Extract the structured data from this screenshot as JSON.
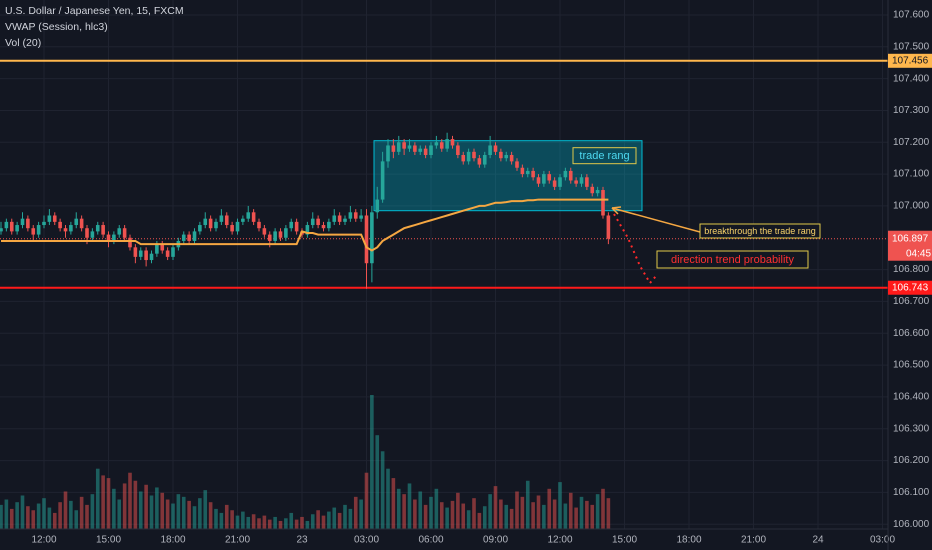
{
  "chart_data": {
    "type": "candlestick",
    "title": "U.S. Dollar / Japanese Yen, 15, FXCM",
    "indicators": [
      "VWAP (Session, hlc3)",
      "Vol (20)"
    ],
    "categories": [
      null,
      null,
      null,
      null,
      null,
      null,
      null,
      null,
      "12:00",
      null,
      null,
      null,
      null,
      null,
      null,
      null,
      null,
      null,
      null,
      null,
      "15:00",
      null,
      null,
      null,
      null,
      null,
      null,
      null,
      null,
      null,
      null,
      null,
      "18:00",
      null,
      null,
      null,
      null,
      null,
      null,
      null,
      null,
      null,
      null,
      null,
      "21:00",
      null,
      null,
      null,
      null,
      null,
      null,
      null,
      null,
      null,
      null,
      null,
      "23",
      null,
      null,
      null,
      null,
      null,
      null,
      null,
      null,
      null,
      null,
      null,
      "03:00",
      null,
      null,
      null,
      null,
      null,
      null,
      null,
      null,
      null,
      null,
      null,
      "06:00",
      null,
      null,
      null,
      null,
      null,
      null,
      null,
      null,
      null,
      null,
      null,
      "09:00",
      null,
      null,
      null,
      null,
      null,
      null,
      null,
      null,
      null,
      null,
      null,
      "12:00",
      null,
      null,
      null,
      null,
      null,
      null,
      null,
      null,
      null
    ],
    "future_labels": [
      "15:00",
      "18:00",
      "21:00",
      "24",
      "03:00"
    ],
    "ohlc": [
      [
        106.92,
        106.95,
        106.91,
        106.93
      ],
      [
        106.93,
        106.96,
        106.92,
        106.95
      ],
      [
        106.95,
        106.96,
        106.91,
        106.92
      ],
      [
        106.92,
        106.95,
        106.91,
        106.94
      ],
      [
        106.94,
        106.98,
        106.93,
        106.96
      ],
      [
        106.96,
        106.97,
        106.92,
        106.93
      ],
      [
        106.93,
        106.94,
        106.89,
        106.91
      ],
      [
        106.91,
        106.95,
        106.9,
        106.94
      ],
      [
        106.94,
        106.97,
        106.93,
        106.95
      ],
      [
        106.95,
        106.99,
        106.94,
        106.97
      ],
      [
        106.97,
        106.98,
        106.94,
        106.95
      ],
      [
        106.95,
        106.96,
        106.92,
        106.93
      ],
      [
        106.93,
        106.94,
        106.9,
        106.92
      ],
      [
        106.92,
        106.95,
        106.91,
        106.94
      ],
      [
        106.94,
        106.98,
        106.93,
        106.96
      ],
      [
        106.96,
        106.97,
        106.92,
        106.93
      ],
      [
        106.93,
        106.94,
        106.88,
        106.9
      ],
      [
        106.9,
        106.93,
        106.89,
        106.92
      ],
      [
        106.92,
        106.95,
        106.91,
        106.94
      ],
      [
        106.94,
        106.95,
        106.9,
        106.91
      ],
      [
        106.91,
        106.92,
        106.87,
        106.89
      ],
      [
        106.89,
        106.92,
        106.88,
        106.91
      ],
      [
        106.91,
        106.94,
        106.9,
        106.93
      ],
      [
        106.93,
        106.94,
        106.89,
        106.9
      ],
      [
        106.9,
        106.91,
        106.86,
        106.87
      ],
      [
        106.87,
        106.88,
        106.82,
        106.84
      ],
      [
        106.84,
        106.87,
        106.83,
        106.86
      ],
      [
        106.86,
        106.87,
        106.81,
        106.83
      ],
      [
        106.83,
        106.86,
        106.82,
        106.85
      ],
      [
        106.85,
        106.89,
        106.84,
        106.88
      ],
      [
        106.88,
        106.89,
        106.85,
        106.86
      ],
      [
        106.86,
        106.87,
        106.83,
        106.84
      ],
      [
        106.84,
        106.88,
        106.83,
        106.87
      ],
      [
        106.87,
        106.9,
        106.86,
        106.89
      ],
      [
        106.89,
        106.92,
        106.88,
        106.91
      ],
      [
        106.91,
        106.92,
        106.88,
        106.89
      ],
      [
        106.89,
        106.93,
        106.88,
        106.92
      ],
      [
        106.92,
        106.95,
        106.91,
        106.94
      ],
      [
        106.94,
        106.98,
        106.93,
        106.96
      ],
      [
        106.96,
        106.97,
        106.92,
        106.93
      ],
      [
        106.93,
        106.96,
        106.92,
        106.95
      ],
      [
        106.95,
        106.99,
        106.94,
        106.97
      ],
      [
        106.97,
        106.98,
        106.93,
        106.94
      ],
      [
        106.94,
        106.95,
        106.91,
        106.92
      ],
      [
        106.92,
        106.96,
        106.91,
        106.95
      ],
      [
        106.95,
        106.97,
        106.94,
        106.96
      ],
      [
        106.96,
        107.0,
        106.95,
        106.98
      ],
      [
        106.98,
        106.99,
        106.94,
        106.95
      ],
      [
        106.95,
        106.96,
        106.92,
        106.93
      ],
      [
        106.93,
        106.94,
        106.9,
        106.91
      ],
      [
        106.91,
        106.92,
        106.87,
        106.89
      ],
      [
        106.89,
        106.93,
        106.88,
        106.92
      ],
      [
        106.92,
        106.93,
        106.89,
        106.9
      ],
      [
        106.9,
        106.94,
        106.89,
        106.93
      ],
      [
        106.93,
        106.96,
        106.92,
        106.95
      ],
      [
        106.95,
        106.96,
        106.91,
        106.92
      ],
      [
        106.92,
        106.93,
        106.9,
        106.91
      ],
      [
        106.91,
        106.95,
        106.9,
        106.94
      ],
      [
        106.94,
        106.98,
        106.93,
        106.96
      ],
      [
        106.96,
        106.97,
        106.93,
        106.94
      ],
      [
        106.94,
        106.95,
        106.92,
        106.93
      ],
      [
        106.93,
        106.96,
        106.92,
        106.95
      ],
      [
        106.95,
        106.99,
        106.94,
        106.97
      ],
      [
        106.97,
        106.98,
        106.94,
        106.95
      ],
      [
        106.95,
        106.97,
        106.94,
        106.96
      ],
      [
        106.96,
        107.0,
        106.95,
        106.98
      ],
      [
        106.98,
        106.99,
        106.95,
        106.96
      ],
      [
        106.96,
        106.99,
        106.95,
        106.97
      ],
      [
        106.97,
        106.99,
        106.74,
        106.82
      ],
      [
        106.82,
        107.0,
        106.76,
        106.98
      ],
      [
        106.98,
        107.06,
        106.96,
        107.02
      ],
      [
        107.02,
        107.17,
        107.01,
        107.14
      ],
      [
        107.14,
        107.21,
        107.12,
        107.19
      ],
      [
        107.19,
        107.21,
        107.15,
        107.17
      ],
      [
        107.17,
        107.22,
        107.16,
        107.2
      ],
      [
        107.2,
        107.21,
        107.16,
        107.18
      ],
      [
        107.18,
        107.21,
        107.17,
        107.19
      ],
      [
        107.19,
        107.2,
        107.16,
        107.17
      ],
      [
        107.17,
        107.19,
        107.16,
        107.18
      ],
      [
        107.18,
        107.19,
        107.15,
        107.16
      ],
      [
        107.16,
        107.2,
        107.15,
        107.19
      ],
      [
        107.19,
        107.22,
        107.18,
        107.2
      ],
      [
        107.2,
        107.21,
        107.17,
        107.18
      ],
      [
        107.18,
        107.23,
        107.17,
        107.21
      ],
      [
        107.21,
        107.22,
        107.18,
        107.19
      ],
      [
        107.19,
        107.2,
        107.15,
        107.16
      ],
      [
        107.16,
        107.17,
        107.13,
        107.14
      ],
      [
        107.14,
        107.18,
        107.13,
        107.17
      ],
      [
        107.17,
        107.18,
        107.14,
        107.15
      ],
      [
        107.15,
        107.16,
        107.12,
        107.13
      ],
      [
        107.13,
        107.17,
        107.12,
        107.16
      ],
      [
        107.16,
        107.22,
        107.15,
        107.19
      ],
      [
        107.19,
        107.2,
        107.16,
        107.17
      ],
      [
        107.17,
        107.18,
        107.14,
        107.15
      ],
      [
        107.15,
        107.17,
        107.14,
        107.16
      ],
      [
        107.16,
        107.17,
        107.13,
        107.14
      ],
      [
        107.14,
        107.15,
        107.11,
        107.12
      ],
      [
        107.12,
        107.13,
        107.09,
        107.1
      ],
      [
        107.1,
        107.12,
        107.09,
        107.11
      ],
      [
        107.11,
        107.12,
        107.08,
        107.09
      ],
      [
        107.09,
        107.1,
        107.06,
        107.07
      ],
      [
        107.07,
        107.11,
        107.06,
        107.1
      ],
      [
        107.1,
        107.11,
        107.07,
        107.08
      ],
      [
        107.08,
        107.09,
        107.05,
        107.06
      ],
      [
        107.06,
        107.1,
        107.05,
        107.09
      ],
      [
        107.09,
        107.12,
        107.08,
        107.11
      ],
      [
        107.11,
        107.12,
        107.07,
        107.08
      ],
      [
        107.08,
        107.09,
        107.06,
        107.07
      ],
      [
        107.07,
        107.1,
        107.06,
        107.09
      ],
      [
        107.09,
        107.1,
        107.05,
        107.06
      ],
      [
        107.06,
        107.07,
        107.03,
        107.04
      ],
      [
        107.04,
        107.06,
        107.03,
        107.05
      ],
      [
        107.05,
        107.06,
        106.96,
        106.97
      ],
      [
        106.97,
        106.98,
        106.88,
        106.897
      ]
    ],
    "volume": [
      18,
      22,
      15,
      20,
      25,
      17,
      14,
      19,
      23,
      16,
      12,
      20,
      28,
      21,
      14,
      24,
      18,
      26,
      45,
      40,
      38,
      30,
      22,
      34,
      42,
      36,
      28,
      33,
      25,
      31,
      27,
      22,
      19,
      26,
      24,
      21,
      17,
      23,
      29,
      20,
      15,
      12,
      18,
      14,
      10,
      13,
      9,
      11,
      8,
      10,
      7,
      9,
      6,
      8,
      12,
      7,
      9,
      6,
      11,
      14,
      10,
      13,
      16,
      12,
      18,
      15,
      24,
      22,
      42,
      100,
      70,
      58,
      45,
      38,
      30,
      26,
      34,
      22,
      28,
      18,
      24,
      30,
      20,
      16,
      21,
      27,
      19,
      14,
      23,
      12,
      17,
      26,
      32,
      22,
      18,
      15,
      28,
      24,
      36,
      20,
      25,
      18,
      30,
      22,
      35,
      19,
      27,
      16,
      24,
      21,
      18,
      26,
      30,
      23
    ],
    "vwap": {
      "color": "#f5a742",
      "values": [
        106.89,
        106.89,
        106.89,
        106.89,
        106.89,
        106.89,
        106.89,
        106.89,
        106.89,
        106.89,
        106.89,
        106.89,
        106.89,
        106.89,
        106.89,
        106.89,
        106.89,
        106.89,
        106.89,
        106.89,
        106.89,
        106.89,
        106.89,
        106.89,
        106.89,
        106.89,
        106.88,
        106.88,
        106.88,
        106.88,
        106.88,
        106.88,
        106.88,
        106.88,
        106.88,
        106.88,
        106.88,
        106.88,
        106.88,
        106.88,
        106.88,
        106.88,
        106.88,
        106.88,
        106.88,
        106.88,
        106.88,
        106.88,
        106.88,
        106.88,
        106.88,
        106.88,
        106.88,
        106.88,
        106.88,
        106.88,
        106.92,
        106.915,
        106.915,
        106.91,
        106.91,
        106.91,
        106.91,
        106.91,
        106.91,
        106.91,
        106.91,
        106.91,
        106.87,
        106.86,
        106.87,
        106.89,
        106.9,
        106.91,
        106.92,
        106.93,
        106.935,
        106.94,
        106.945,
        106.95,
        106.955,
        106.96,
        106.965,
        106.97,
        106.975,
        106.98,
        106.985,
        106.99,
        106.995,
        107.0,
        107.0,
        107.005,
        107.01,
        107.01,
        107.012,
        107.015,
        107.015,
        107.015,
        107.018,
        107.018,
        107.02,
        107.02,
        107.02,
        107.02,
        107.02,
        107.02,
        107.02,
        107.02,
        107.02,
        107.02,
        107.02,
        107.02,
        107.02,
        107.02
      ]
    },
    "up_color": "#26a69a",
    "down_color": "#ef5350",
    "ylim": [
      105.985,
      107.647
    ],
    "yticks": [
      {
        "value": 107.6,
        "label": "107.600"
      },
      {
        "value": 107.5,
        "label": "107.500"
      },
      {
        "value": 107.4,
        "label": "107.400"
      },
      {
        "value": 107.3,
        "label": "107.300"
      },
      {
        "value": 107.2,
        "label": "107.200"
      },
      {
        "value": 107.1,
        "label": "107.100"
      },
      {
        "value": 107.0,
        "label": "107.000"
      },
      {
        "value": 106.8,
        "label": "106.800"
      },
      {
        "value": 106.7,
        "label": "106.700"
      },
      {
        "value": 106.6,
        "label": "106.600"
      },
      {
        "value": 106.5,
        "label": "106.500"
      },
      {
        "value": 106.4,
        "label": "106.400"
      },
      {
        "value": 106.3,
        "label": "106.300"
      },
      {
        "value": 106.2,
        "label": "106.200"
      },
      {
        "value": 106.1,
        "label": "106.100"
      },
      {
        "value": 106.0,
        "label": "106.000"
      }
    ],
    "grid": true,
    "levels": [
      {
        "value": 107.456,
        "color": "#ffb74d"
      },
      {
        "value": 106.743,
        "color": "#ff1a1a"
      }
    ],
    "last_price": {
      "value": 106.897,
      "countdown": "04:45",
      "color": "#ef5350"
    },
    "trade_range": {
      "label": "trade rang",
      "top": 107.205,
      "bottom": 106.985
    },
    "annotations": [
      "breakthrough the trade rang",
      "direction trend probability"
    ]
  }
}
